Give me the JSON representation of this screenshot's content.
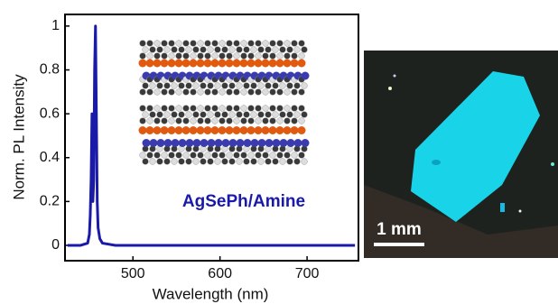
{
  "chart_data": {
    "type": "line",
    "x_label": "Wavelength (nm)",
    "y_label": "Norm. PL Intensity",
    "annotation": "AgSePh/Amine",
    "scale_bar_label": "1 mm",
    "x": [
      425,
      440,
      448,
      450,
      451,
      452,
      453,
      454,
      455,
      456,
      457,
      458,
      459,
      460,
      462,
      465,
      480,
      500,
      600,
      700,
      755
    ],
    "series": [
      {
        "name": "AgSePh/Amine",
        "color": "#1a1aa8",
        "values": [
          0,
          0,
          0.01,
          0.05,
          0.14,
          0.3,
          0.6,
          0.2,
          0.3,
          0.8,
          1,
          0.6,
          0.2,
          0.08,
          0.03,
          0.01,
          0,
          0,
          0,
          0,
          0
        ]
      }
    ],
    "xlim": [
      422,
      759
    ],
    "ylim": [
      -0.07,
      1.053
    ],
    "xticks": [
      500,
      600,
      700
    ],
    "yticks": [
      0,
      0.2,
      0.4,
      0.6,
      0.8,
      1
    ]
  }
}
